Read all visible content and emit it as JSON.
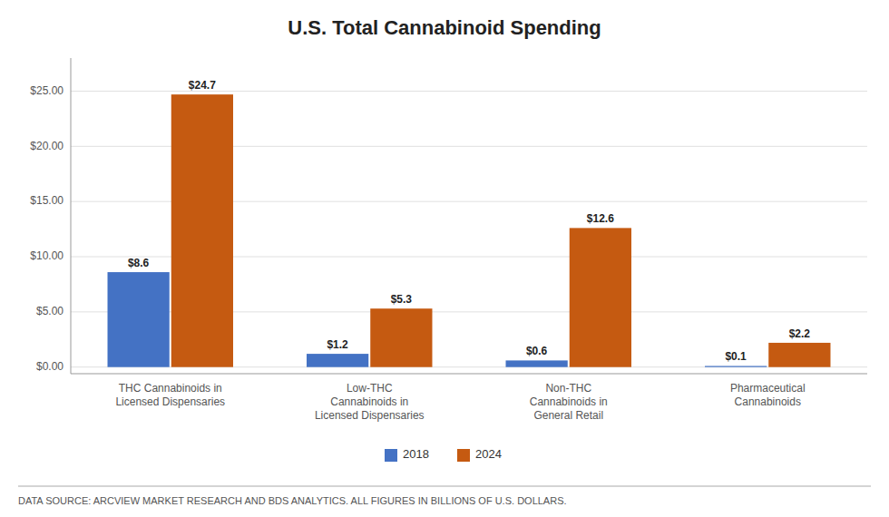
{
  "chart_data": {
    "type": "bar",
    "title": "U.S. Total Cannabinoid Spending",
    "categories": [
      "THC Cannabinoids in\nLicensed Dispensaries",
      "Low-THC\nCannabinoids in\nLicensed Dispensaries",
      "Non-THC\nCannabinoids in\nGeneral Retail",
      "Pharmaceutical\nCannabinoids"
    ],
    "series": [
      {
        "name": "2018",
        "color": "#4472C4",
        "values": [
          8.6,
          1.2,
          0.6,
          0.1
        ],
        "value_labels": [
          "$8.6",
          "$1.2",
          "$0.6",
          "$0.1"
        ]
      },
      {
        "name": "2024",
        "color": "#C55A11",
        "values": [
          24.7,
          5.3,
          12.6,
          2.2
        ],
        "value_labels": [
          "$24.7",
          "$5.3",
          "$12.6",
          "$2.2"
        ]
      }
    ],
    "ylim": [
      -0.6,
      28
    ],
    "yticks": [
      {
        "value": 0,
        "label": "$0.00"
      },
      {
        "value": 5,
        "label": "$5.00"
      },
      {
        "value": 10,
        "label": "$10.00"
      },
      {
        "value": 15,
        "label": "$15.00"
      },
      {
        "value": 20,
        "label": "$20.00"
      },
      {
        "value": 25,
        "label": "$25.00"
      }
    ],
    "grid": true,
    "legend": "bottom",
    "data_labels": true,
    "annotations": [
      "DATA SOURCE: ARCVIEW MARKET RESEARCH AND BDS ANALYTICS. ALL FIGURES IN BILLIONS OF U.S. DOLLARS."
    ]
  }
}
